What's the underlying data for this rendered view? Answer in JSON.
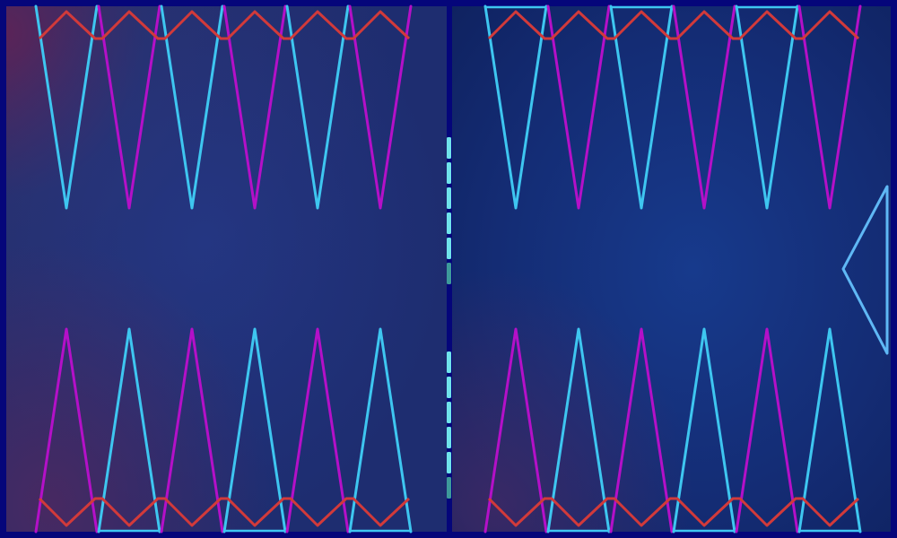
{
  "board": {
    "points_per_half_row": 6,
    "colors": {
      "frame": "#05067a",
      "point_cyan": "#3ec6f0",
      "point_magenta": "#b410c8",
      "zigzag_red": "#d23a3a",
      "bar_tick": "#6fe3ea",
      "bar_tick_dim": "#3d9a9a",
      "arrow": "#5fb8f5",
      "panel_glow_left": "#6a2450",
      "panel_base": "#1c2a72"
    },
    "bar_ticks": {
      "upper_count": 6,
      "lower_count": 6,
      "dim_last": true
    },
    "side_arrow": {
      "icon": "triangle-left-icon",
      "direction": "left"
    }
  }
}
